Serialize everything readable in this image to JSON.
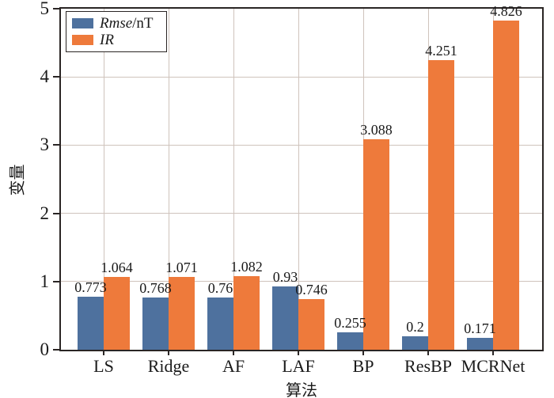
{
  "chart_data": {
    "type": "bar",
    "title": "",
    "categories": [
      "LS",
      "Ridge",
      "AF",
      "LAF",
      "BP",
      "ResBP",
      "MCRNet"
    ],
    "series": [
      {
        "name": "Rmse/nT",
        "color": "#4e719e",
        "values": [
          0.773,
          0.768,
          0.76,
          0.93,
          0.255,
          0.2,
          0.171
        ],
        "labels": [
          "0.773",
          "0.768",
          "0.76",
          "0.93",
          "0.255",
          "0.2",
          "0.171"
        ]
      },
      {
        "name": "IR",
        "color": "#ee7a3b",
        "values": [
          1.064,
          1.071,
          1.082,
          0.746,
          3.088,
          4.251,
          4.826
        ],
        "labels": [
          "1.064",
          "1.071",
          "1.082",
          "0.746",
          "3.088",
          "4.251",
          "4.826"
        ]
      }
    ],
    "xlabel": "算法",
    "ylabel": "变量",
    "ylim": [
      0,
      5
    ],
    "yticks": [
      "0",
      "1",
      "2",
      "3",
      "4",
      "5"
    ],
    "grid": true,
    "legend_position": "upper-left"
  },
  "legend": {
    "items": [
      {
        "italic": "Rmse",
        "rest": "/nT"
      },
      {
        "italic": "IR",
        "rest": ""
      }
    ]
  },
  "colors": {
    "grid": "#cfc3bc",
    "frame": "#2a2524",
    "bar_blue": "#4e719e",
    "bar_orange": "#ee7a3b",
    "text": "#1a1a1a"
  }
}
